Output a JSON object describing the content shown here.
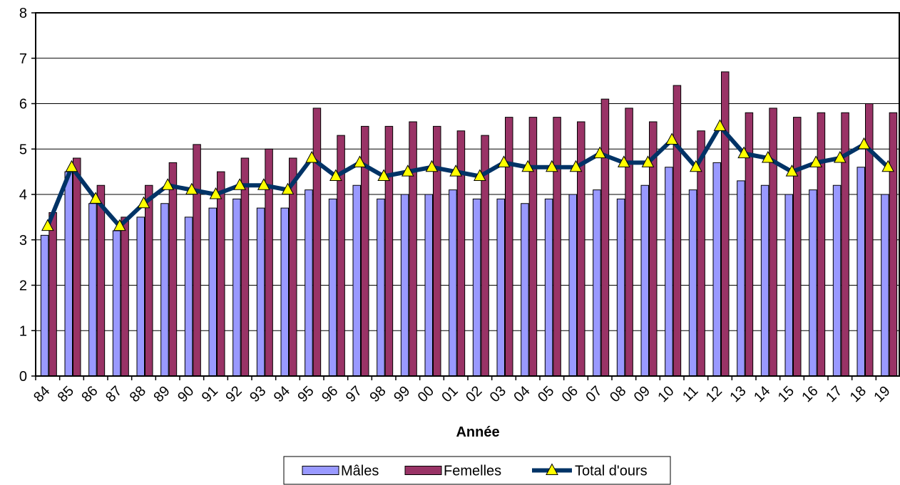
{
  "chart_data": {
    "type": "bar",
    "xlabel": "Année",
    "ylabel": "",
    "ylim": [
      0,
      8
    ],
    "yticks": [
      0,
      1,
      2,
      3,
      4,
      5,
      6,
      7,
      8
    ],
    "grid": true,
    "legend_position": "bottom",
    "categories": [
      "84",
      "85",
      "86",
      "87",
      "88",
      "89",
      "90",
      "91",
      "92",
      "93",
      "94",
      "95",
      "96",
      "97",
      "98",
      "99",
      "00",
      "01",
      "02",
      "03",
      "04",
      "05",
      "06",
      "07",
      "08",
      "09",
      "10",
      "11",
      "12",
      "13",
      "14",
      "15",
      "16",
      "17",
      "18",
      "19"
    ],
    "series": [
      {
        "name": "Mâles",
        "type": "bar",
        "color": "#9999ff",
        "values": [
          3.1,
          4.5,
          3.8,
          3.2,
          3.5,
          3.8,
          3.5,
          3.7,
          3.9,
          3.7,
          3.7,
          4.1,
          3.9,
          4.2,
          3.9,
          4.0,
          4.0,
          4.1,
          3.9,
          3.9,
          3.8,
          3.9,
          4.0,
          4.1,
          3.9,
          4.2,
          4.6,
          4.1,
          4.7,
          4.3,
          4.2,
          4.0,
          4.1,
          4.2,
          4.6,
          4.0
        ]
      },
      {
        "name": "Femelles",
        "type": "bar",
        "color": "#993366",
        "values": [
          3.6,
          4.8,
          4.2,
          3.5,
          4.2,
          4.7,
          5.1,
          4.5,
          4.8,
          5.0,
          4.8,
          5.9,
          5.3,
          5.5,
          5.5,
          5.6,
          5.5,
          5.4,
          5.3,
          5.7,
          5.7,
          5.7,
          5.6,
          6.1,
          5.9,
          5.6,
          6.4,
          5.4,
          6.7,
          5.8,
          5.9,
          5.7,
          5.8,
          5.8,
          6.0,
          5.8
        ]
      },
      {
        "name": "Total d'ours",
        "type": "line",
        "color": "#003366",
        "marker_color": "#ffff00",
        "values": [
          3.3,
          4.6,
          3.9,
          3.3,
          3.8,
          4.2,
          4.1,
          4.0,
          4.2,
          4.2,
          4.1,
          4.8,
          4.4,
          4.7,
          4.4,
          4.5,
          4.6,
          4.5,
          4.4,
          4.7,
          4.6,
          4.6,
          4.6,
          4.9,
          4.7,
          4.7,
          5.2,
          4.6,
          5.5,
          4.9,
          4.8,
          4.5,
          4.7,
          4.8,
          5.1,
          4.6
        ]
      }
    ]
  }
}
